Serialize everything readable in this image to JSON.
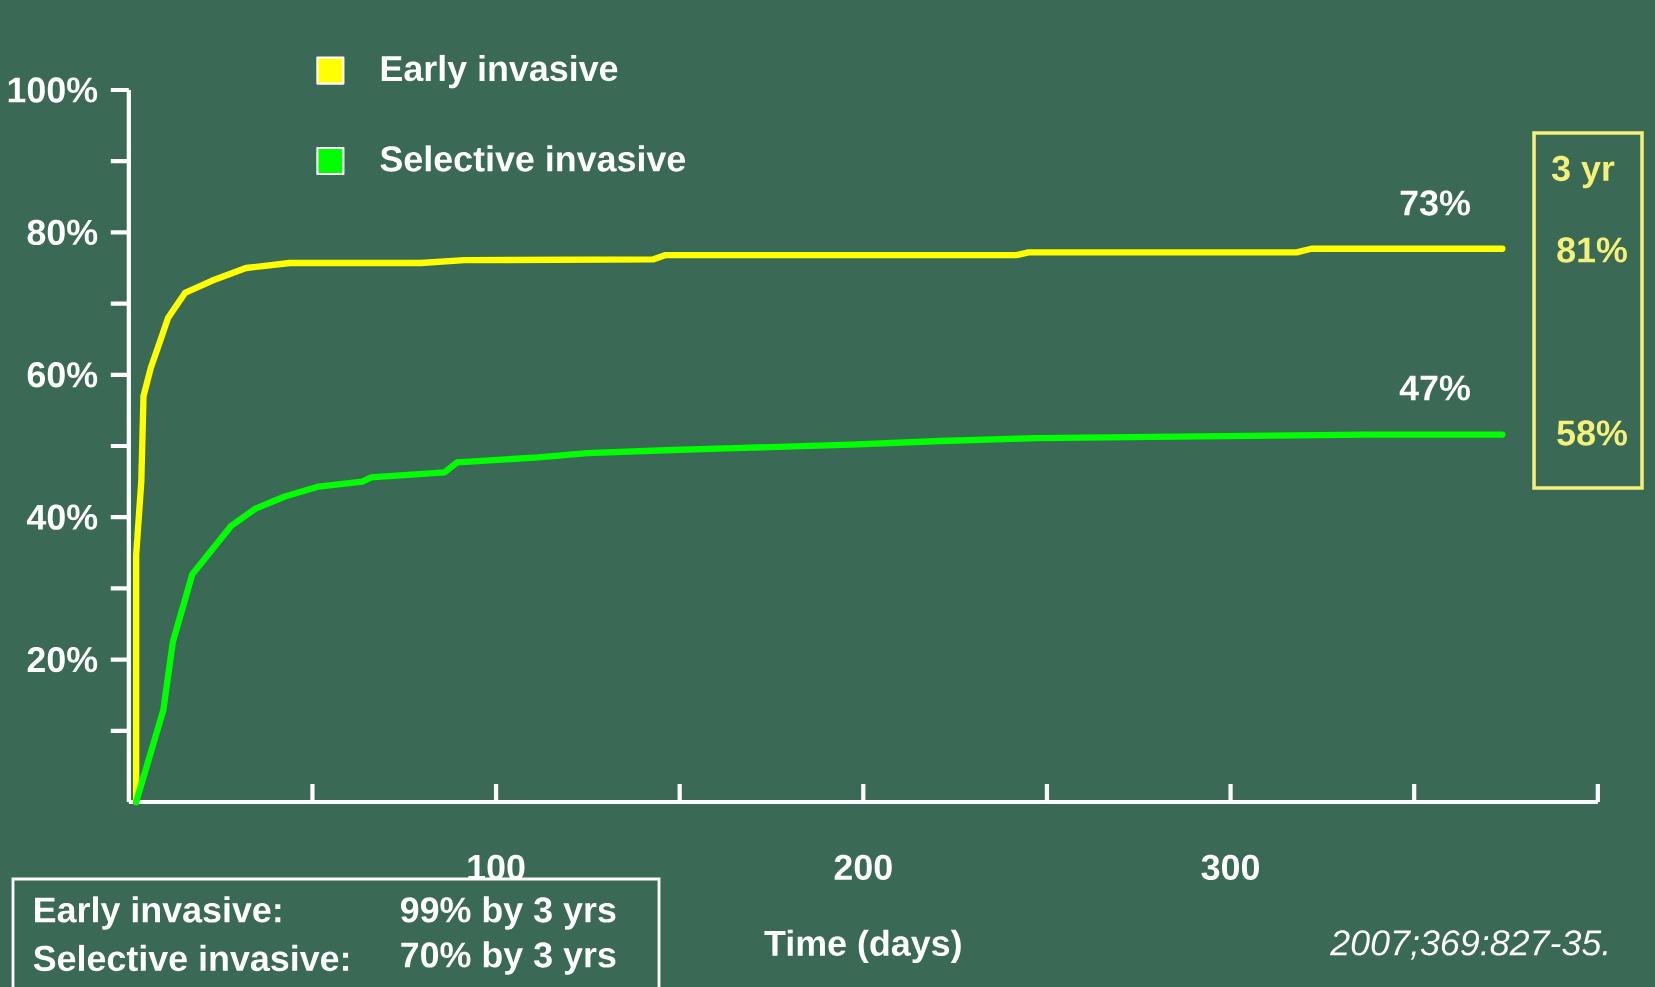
{
  "chart_data": {
    "type": "line",
    "xlabel": "Time (days)",
    "xlim": [
      0,
      400
    ],
    "ylim": [
      0,
      100
    ],
    "xticks": [
      100,
      200,
      300
    ],
    "yticks": [
      {
        "value": 20,
        "label": "20%"
      },
      {
        "value": 40,
        "label": "40%"
      },
      {
        "value": 60,
        "label": "60%"
      },
      {
        "value": 80,
        "label": "80%"
      },
      {
        "value": 100,
        "label": "100%"
      }
    ],
    "series": [
      {
        "name": "Early invasive",
        "color": "#ffff00",
        "x": [
          2,
          2,
          3.4,
          4,
          6,
          8.7,
          10.7,
          15.3,
          22.6,
          31.9,
          43.8,
          79.5,
          91.4,
          142.7,
          146,
          241.7,
          245,
          318,
          322,
          374
        ],
        "values": [
          0,
          34.7,
          45,
          57,
          61,
          65,
          68,
          71.5,
          73.2,
          75,
          75.7,
          75.7,
          76.1,
          76.2,
          76.8,
          76.8,
          77.2,
          77.2,
          77.7,
          77.7
        ]
      },
      {
        "name": "Selective invasive",
        "color": "#00ff00",
        "x": [
          2,
          9.4,
          12,
          17.3,
          22.6,
          27.9,
          34.5,
          42.5,
          51.7,
          63.6,
          66,
          86,
          89.4,
          111.4,
          125,
          146,
          165,
          196.6,
          221,
          247,
          337,
          374
        ],
        "values": [
          0,
          12.9,
          22.5,
          32,
          35.4,
          38.8,
          41.2,
          42.9,
          44.3,
          45,
          45.6,
          46.3,
          47.7,
          48.4,
          49,
          49.4,
          49.7,
          50.2,
          50.7,
          51.1,
          51.6,
          51.6
        ]
      }
    ],
    "annotations": [
      "73%",
      "47%",
      "3 yr",
      "81%",
      "58%",
      "Early invasive:",
      "99% by 3 yrs",
      "Selective invasive:",
      "70% by 3 yrs",
      "2007;369:827-35."
    ],
    "legend": "top left",
    "line_style": "solid"
  }
}
